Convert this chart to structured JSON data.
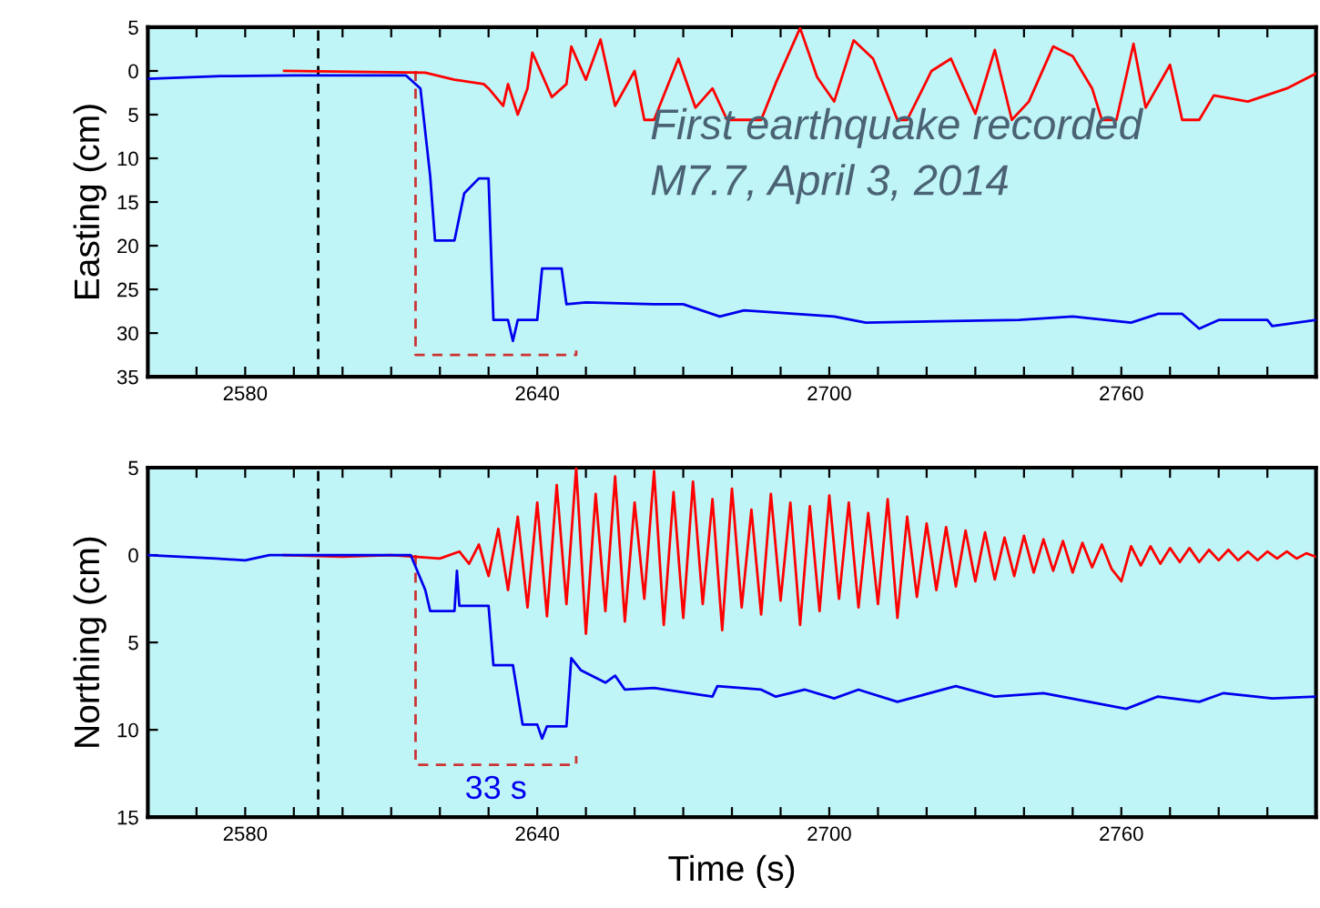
{
  "chart_data": [
    {
      "type": "line",
      "ylabel": "Easting (cm)",
      "xlim": [
        2560,
        2800
      ],
      "ylim": [
        35,
        -5
      ],
      "xticks": [
        {
          "value": 2570,
          "label": null
        },
        2580,
        {
          "value": 2590,
          "label": null
        },
        {
          "value": 2600,
          "label": null
        },
        {
          "value": 2610,
          "label": null
        },
        {
          "value": 2620,
          "label": null
        },
        {
          "value": 2630,
          "label": null
        },
        2640,
        {
          "value": 2650,
          "label": null
        },
        {
          "value": 2660,
          "label": null
        },
        {
          "value": 2670,
          "label": null
        },
        {
          "value": 2680,
          "label": null
        },
        {
          "value": 2690,
          "label": null
        },
        2700,
        {
          "value": 2710,
          "label": null
        },
        {
          "value": 2720,
          "label": null
        },
        {
          "value": 2730,
          "label": null
        },
        {
          "value": 2740,
          "label": null
        },
        {
          "value": 2750,
          "label": null
        },
        2760,
        {
          "value": 2770,
          "label": null
        },
        {
          "value": 2780,
          "label": null
        },
        {
          "value": 2790,
          "label": null
        }
      ],
      "yticks": [
        {
          "value": -5,
          "label": "5"
        },
        0,
        5,
        10,
        15,
        20,
        25,
        30,
        35
      ],
      "grid": false,
      "legend": false,
      "annotations": [
        "First earthquake recorded",
        "M7.7, April 3, 2014"
      ],
      "ref_lines": [
        {
          "axis": "x",
          "value": 2595,
          "label": null,
          "color": "#000000",
          "line_style": "dashed"
        }
      ],
      "series": [
        {
          "type": "line",
          "color": "#cc3333",
          "line_style": "dashed",
          "x": [
            2615,
            2615,
            2648,
            2648
          ],
          "values": [
            0,
            32.5,
            32.5,
            32
          ]
        },
        {
          "color": "#ff0000",
          "x": [
            2588,
            2617,
            2623,
            2629,
            2630,
            2633,
            2634,
            2636,
            2638,
            2639,
            2643,
            2646,
            2647,
            2650,
            2653,
            2656,
            2660,
            2662,
            2664,
            2669,
            2672.5,
            2676,
            2679,
            2686,
            2689,
            2694,
            2697.5,
            2701,
            2705,
            2709,
            2714,
            2716,
            2721,
            2725,
            2730,
            2734,
            2737.5,
            2741,
            2746,
            2750,
            2754,
            2756,
            2759,
            2762.5,
            2765,
            2770,
            2772.5,
            2776,
            2779,
            2786,
            2794,
            2800
          ],
          "values": [
            0,
            0.2,
            1,
            1.5,
            2,
            4,
            1.5,
            5,
            2,
            -2.1,
            3,
            1.5,
            -2.8,
            1,
            -3.6,
            4,
            0,
            5.6,
            5.6,
            -1.4,
            4.2,
            2,
            5.6,
            5.6,
            1.4,
            -4.9,
            0.7,
            3.5,
            -3.5,
            -1.4,
            5.6,
            5.6,
            0,
            -1.4,
            4.9,
            -2.4,
            5.6,
            3.5,
            -2.8,
            -1.7,
            2,
            5.6,
            5.6,
            -3.1,
            4.2,
            -0.7,
            5.6,
            5.6,
            2.8,
            3.5,
            2,
            0.3
          ]
        },
        {
          "color": "#0000ee",
          "x": [
            2560,
            2575,
            2590,
            2600,
            2613,
            2616,
            2618,
            2619,
            2623,
            2625,
            2628,
            2630,
            2631,
            2634,
            2635,
            2636,
            2640,
            2641,
            2645,
            2646,
            2650,
            2664,
            2670,
            2677.5,
            2682.5,
            2701,
            2707.5,
            2739,
            2750,
            2762,
            2767.5,
            2772.5,
            2776,
            2780,
            2790,
            2791,
            2800
          ],
          "values": [
            0.9,
            0.6,
            0.5,
            0.5,
            0.5,
            2,
            12,
            19.4,
            19.4,
            14,
            12.3,
            12.3,
            28.5,
            28.5,
            30.9,
            28.5,
            28.5,
            22.6,
            22.6,
            26.7,
            26.5,
            26.7,
            26.7,
            28.1,
            27.4,
            28.1,
            28.8,
            28.5,
            28.1,
            28.8,
            27.8,
            27.8,
            29.5,
            28.5,
            28.5,
            29.2,
            28.5
          ]
        }
      ]
    },
    {
      "type": "line",
      "ylabel": "Northing (cm)",
      "xlabel": "Time (s)",
      "xlim": [
        2560,
        2800
      ],
      "ylim": [
        15,
        -5
      ],
      "xticks": [
        {
          "value": 2570,
          "label": null
        },
        2580,
        {
          "value": 2590,
          "label": null
        },
        {
          "value": 2600,
          "label": null
        },
        {
          "value": 2610,
          "label": null
        },
        {
          "value": 2620,
          "label": null
        },
        {
          "value": 2630,
          "label": null
        },
        2640,
        {
          "value": 2650,
          "label": null
        },
        {
          "value": 2660,
          "label": null
        },
        {
          "value": 2670,
          "label": null
        },
        {
          "value": 2680,
          "label": null
        },
        {
          "value": 2690,
          "label": null
        },
        2700,
        {
          "value": 2710,
          "label": null
        },
        {
          "value": 2720,
          "label": null
        },
        {
          "value": 2730,
          "label": null
        },
        {
          "value": 2740,
          "label": null
        },
        {
          "value": 2750,
          "label": null
        },
        2760,
        {
          "value": 2770,
          "label": null
        },
        {
          "value": 2780,
          "label": null
        },
        {
          "value": 2790,
          "label": null
        }
      ],
      "yticks": [
        {
          "value": -5,
          "label": "5"
        },
        0,
        5,
        10,
        15
      ],
      "grid": false,
      "legend": false,
      "ref_lines": [
        {
          "axis": "x",
          "value": 2595,
          "label": null,
          "color": "#000000",
          "line_style": "dashed"
        }
      ],
      "annotations": [
        {
          "text": "33 s",
          "x": 2631.5,
          "y": 12
        }
      ],
      "series": [
        {
          "type": "line",
          "color": "#cc3333",
          "line_style": "dashed",
          "x": [
            2615,
            2615,
            2648,
            2648
          ],
          "values": [
            0,
            12,
            12,
            11.5
          ]
        },
        {
          "color": "#ff0000",
          "x": [
            2588,
            2600,
            2610,
            2620,
            2624,
            2626,
            2628,
            2630,
            2632,
            2634,
            2636,
            2638,
            2640,
            2642,
            2644,
            2646,
            2648,
            2650,
            2652,
            2654,
            2656,
            2658,
            2660,
            2662,
            2664,
            2666,
            2668,
            2670,
            2672,
            2674,
            2676,
            2678,
            2680,
            2682,
            2684,
            2686,
            2688,
            2690,
            2692,
            2694,
            2696,
            2698,
            2700,
            2702,
            2704,
            2706,
            2708,
            2710,
            2712,
            2714,
            2716,
            2718,
            2720,
            2722,
            2724,
            2726,
            2728,
            2730,
            2732,
            2734,
            2736,
            2738,
            2740,
            2742,
            2744,
            2746,
            2748,
            2750,
            2752,
            2754,
            2756,
            2758,
            2760,
            2762,
            2764,
            2766,
            2768,
            2770,
            2772,
            2774,
            2776,
            2778,
            2780,
            2782,
            2784,
            2786,
            2788,
            2790,
            2792,
            2794,
            2796,
            2798,
            2800
          ],
          "values": [
            0,
            0.1,
            0,
            0.2,
            -0.2,
            0.5,
            -0.6,
            1.2,
            -1.5,
            2.0,
            -2.2,
            3.0,
            -3.0,
            3.5,
            -4.0,
            2.8,
            -5.0,
            4.5,
            -3.5,
            3.2,
            -4.5,
            3.8,
            -3.0,
            2.5,
            -4.8,
            4.0,
            -3.6,
            3.6,
            -4.2,
            2.8,
            -3.2,
            4.3,
            -3.8,
            3.0,
            -2.6,
            3.4,
            -3.5,
            2.6,
            -3.0,
            4.0,
            -2.8,
            3.2,
            -3.4,
            2.5,
            -3.0,
            3.0,
            -2.4,
            2.8,
            -3.2,
            3.6,
            -2.2,
            2.4,
            -1.8,
            2.0,
            -1.6,
            1.8,
            -1.4,
            1.5,
            -1.3,
            1.4,
            -1.0,
            1.2,
            -1.1,
            1.0,
            -0.9,
            0.9,
            -0.8,
            1.0,
            -0.7,
            0.7,
            -0.6,
            0.8,
            1.5,
            -0.5,
            0.6,
            -0.5,
            0.5,
            -0.4,
            0.4,
            -0.4,
            0.4,
            -0.3,
            0.3,
            -0.3,
            0.3,
            -0.2,
            0.3,
            -0.2,
            0.2,
            -0.2,
            0.2,
            -0.1,
            0.1
          ]
        },
        {
          "color": "#0000ee",
          "x": [
            2560,
            2574,
            2580,
            2585,
            2614,
            2617,
            2618,
            2623,
            2623.5,
            2624,
            2630,
            2631,
            2635,
            2637,
            2640,
            2641,
            2642,
            2646,
            2647,
            2649,
            2654,
            2656,
            2658,
            2664,
            2676,
            2677,
            2686,
            2689,
            2695,
            2701,
            2706,
            2714,
            2726,
            2734,
            2744,
            2761,
            2767.5,
            2776,
            2781,
            2791,
            2800
          ],
          "values": [
            0,
            0.2,
            0.3,
            0,
            0,
            2,
            3.2,
            3.2,
            0.9,
            2.9,
            2.9,
            6.3,
            6.3,
            9.7,
            9.7,
            10.5,
            9.8,
            9.8,
            5.9,
            6.6,
            7.3,
            6.9,
            7.7,
            7.6,
            8.1,
            7.5,
            7.7,
            8.1,
            7.7,
            8.2,
            7.7,
            8.4,
            7.5,
            8.1,
            7.9,
            8.8,
            8.1,
            8.4,
            7.9,
            8.2,
            8.1
          ]
        }
      ]
    }
  ]
}
